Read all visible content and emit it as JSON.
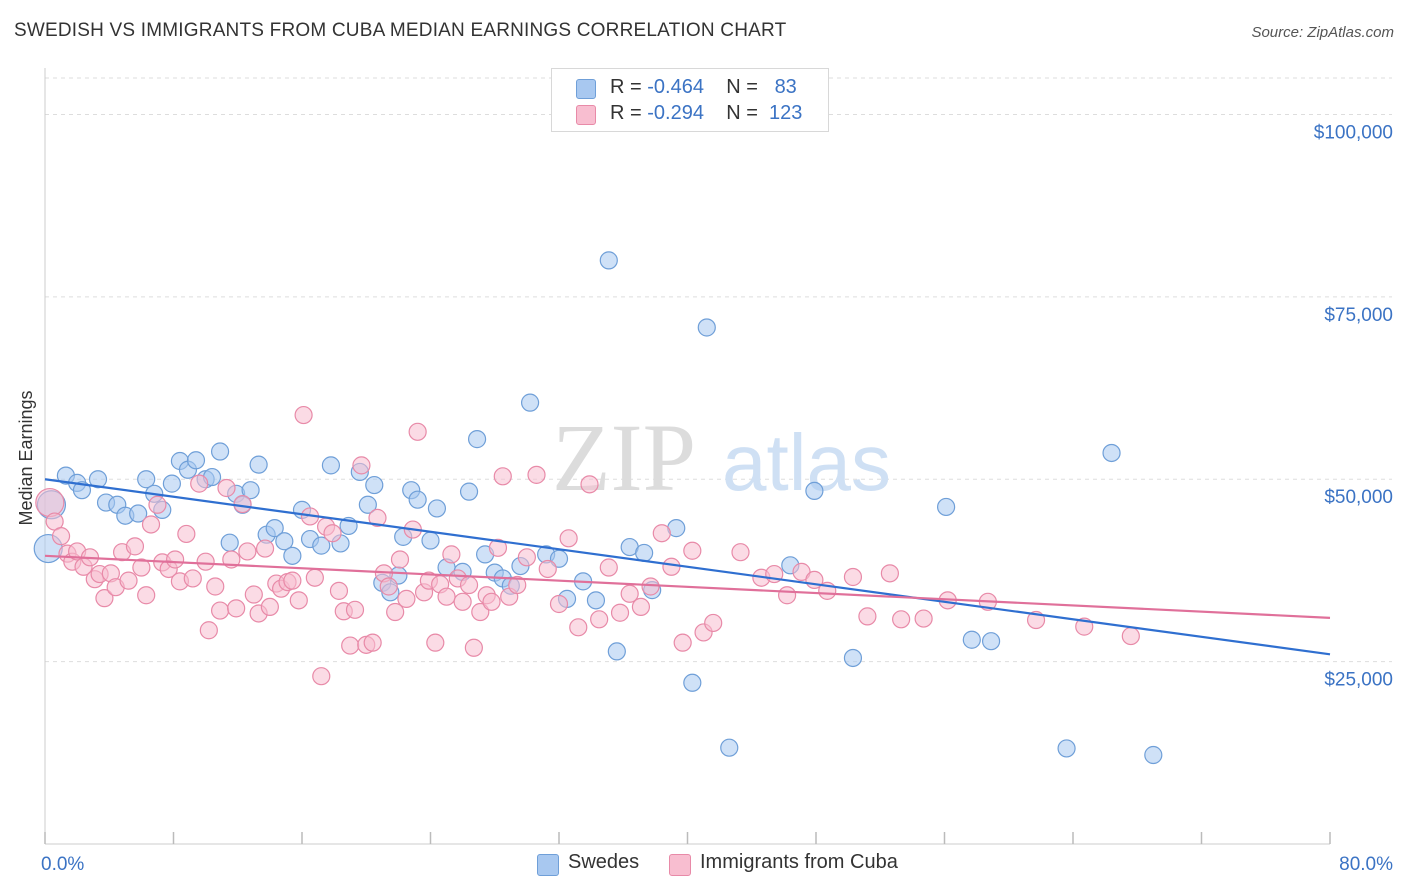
{
  "title": "SWEDISH VS IMMIGRANTS FROM CUBA MEDIAN EARNINGS CORRELATION CHART",
  "source": "Source: ZipAtlas.com",
  "watermark": "ZIPatlas",
  "legend": {
    "rows": [
      {
        "r_label": "R =",
        "r_value": "-0.464",
        "n_label": "N =",
        "n_value": "83",
        "color": "#a8c8f0",
        "border": "#6f9fd8"
      },
      {
        "r_label": "R =",
        "r_value": "-0.294",
        "n_label": "N =",
        "n_value": "123",
        "color": "#f8bed0",
        "border": "#e88aa8"
      }
    ]
  },
  "bottom_legend": [
    {
      "label": "Swedes",
      "color": "#a8c8f0",
      "border": "#6f9fd8"
    },
    {
      "label": "Immigrants from Cuba",
      "color": "#f8bed0",
      "border": "#e88aa8"
    }
  ],
  "chart_data": {
    "type": "scatter",
    "title": "SWEDISH VS IMMIGRANTS FROM CUBA MEDIAN EARNINGS CORRELATION CHART",
    "xlabel": "",
    "ylabel": "Median Earnings",
    "xlim": [
      0,
      80
    ],
    "ylim": [
      0,
      105000
    ],
    "x_tick_labels": [
      "0.0%",
      "80.0%"
    ],
    "y_ticks": [
      25000,
      50000,
      75000,
      100000
    ],
    "y_tick_labels": [
      "$25,000",
      "$50,000",
      "$75,000",
      "$100,000"
    ],
    "grid": "horizontal dashed",
    "legend_position": "top-center",
    "series": [
      {
        "name": "Swedes",
        "color": "#a8c8f0",
        "stroke": "#6f9fd8",
        "line_color": "#2f6fd0",
        "trend": [
          [
            0,
            50000
          ],
          [
            80,
            26000
          ]
        ],
        "points": [
          [
            0.2,
            40500
          ],
          [
            0.4,
            46500
          ],
          [
            1.3,
            50500
          ],
          [
            2.0,
            49500
          ],
          [
            2.3,
            48500
          ],
          [
            3.3,
            50000
          ],
          [
            3.8,
            46800
          ],
          [
            4.5,
            46500
          ],
          [
            5.0,
            45000
          ],
          [
            5.8,
            45300
          ],
          [
            6.3,
            50000
          ],
          [
            6.8,
            48000
          ],
          [
            7.3,
            45800
          ],
          [
            7.9,
            49400
          ],
          [
            8.4,
            52500
          ],
          [
            8.9,
            51300
          ],
          [
            9.4,
            52600
          ],
          [
            10.0,
            50000
          ],
          [
            10.4,
            50300
          ],
          [
            10.9,
            53800
          ],
          [
            11.5,
            41300
          ],
          [
            11.9,
            48000
          ],
          [
            12.3,
            46500
          ],
          [
            12.8,
            48500
          ],
          [
            13.3,
            52000
          ],
          [
            13.8,
            42400
          ],
          [
            14.3,
            43300
          ],
          [
            14.9,
            41500
          ],
          [
            15.4,
            39500
          ],
          [
            16.0,
            45800
          ],
          [
            16.5,
            41800
          ],
          [
            17.2,
            40900
          ],
          [
            17.8,
            51900
          ],
          [
            18.4,
            41200
          ],
          [
            18.9,
            43600
          ],
          [
            19.6,
            51000
          ],
          [
            20.1,
            46500
          ],
          [
            20.5,
            49200
          ],
          [
            21.0,
            35800
          ],
          [
            21.5,
            34500
          ],
          [
            22.0,
            36800
          ],
          [
            22.3,
            42100
          ],
          [
            22.8,
            48500
          ],
          [
            23.2,
            47200
          ],
          [
            24.0,
            41600
          ],
          [
            24.4,
            46000
          ],
          [
            25.0,
            37900
          ],
          [
            26.0,
            37300
          ],
          [
            26.4,
            48300
          ],
          [
            26.9,
            55500
          ],
          [
            27.4,
            39700
          ],
          [
            28.0,
            37200
          ],
          [
            28.5,
            36400
          ],
          [
            29.0,
            35400
          ],
          [
            29.6,
            38100
          ],
          [
            30.2,
            60500
          ],
          [
            31.2,
            39700
          ],
          [
            32.0,
            39100
          ],
          [
            32.5,
            33600
          ],
          [
            33.5,
            36000
          ],
          [
            34.3,
            33400
          ],
          [
            35.1,
            80000
          ],
          [
            35.6,
            26400
          ],
          [
            36.4,
            40700
          ],
          [
            37.3,
            39900
          ],
          [
            37.8,
            34800
          ],
          [
            39.3,
            43300
          ],
          [
            40.3,
            22100
          ],
          [
            41.2,
            70800
          ],
          [
            42.6,
            13200
          ],
          [
            46.4,
            38200
          ],
          [
            47.9,
            48400
          ],
          [
            50.3,
            25500
          ],
          [
            56.1,
            46200
          ],
          [
            57.7,
            28000
          ],
          [
            58.9,
            27800
          ],
          [
            63.6,
            13100
          ],
          [
            66.4,
            53600
          ],
          [
            69.0,
            12200
          ]
        ]
      },
      {
        "name": "Immigrants from Cuba",
        "color": "#f8bed0",
        "stroke": "#e88aa8",
        "line_color": "#e0709a",
        "trend": [
          [
            0,
            39500
          ],
          [
            80,
            31000
          ]
        ],
        "points": [
          [
            0.3,
            46800
          ],
          [
            0.6,
            44200
          ],
          [
            1.0,
            42200
          ],
          [
            1.4,
            39800
          ],
          [
            1.7,
            38700
          ],
          [
            2.0,
            40100
          ],
          [
            2.4,
            38000
          ],
          [
            2.8,
            39300
          ],
          [
            3.1,
            36300
          ],
          [
            3.4,
            37000
          ],
          [
            3.7,
            33700
          ],
          [
            4.1,
            37100
          ],
          [
            4.4,
            35200
          ],
          [
            4.8,
            40000
          ],
          [
            5.2,
            36100
          ],
          [
            5.6,
            40800
          ],
          [
            6.0,
            37900
          ],
          [
            6.3,
            34100
          ],
          [
            6.6,
            43800
          ],
          [
            7.0,
            46500
          ],
          [
            7.3,
            38600
          ],
          [
            7.7,
            37700
          ],
          [
            8.1,
            39000
          ],
          [
            8.4,
            36000
          ],
          [
            8.8,
            42500
          ],
          [
            9.2,
            36400
          ],
          [
            9.6,
            49400
          ],
          [
            10.0,
            38700
          ],
          [
            10.2,
            29300
          ],
          [
            10.6,
            35300
          ],
          [
            10.9,
            32000
          ],
          [
            11.3,
            48800
          ],
          [
            11.6,
            39000
          ],
          [
            11.9,
            32300
          ],
          [
            12.3,
            46600
          ],
          [
            12.6,
            40100
          ],
          [
            13.0,
            34200
          ],
          [
            13.3,
            31600
          ],
          [
            13.7,
            40500
          ],
          [
            14.0,
            32500
          ],
          [
            14.4,
            35700
          ],
          [
            14.7,
            35000
          ],
          [
            15.1,
            35900
          ],
          [
            15.4,
            36100
          ],
          [
            15.8,
            33400
          ],
          [
            16.1,
            58800
          ],
          [
            16.5,
            44900
          ],
          [
            16.8,
            36500
          ],
          [
            17.2,
            23000
          ],
          [
            17.5,
            43500
          ],
          [
            17.9,
            42600
          ],
          [
            18.3,
            34700
          ],
          [
            18.6,
            31900
          ],
          [
            19.0,
            27200
          ],
          [
            19.3,
            32100
          ],
          [
            19.7,
            51900
          ],
          [
            20.0,
            27300
          ],
          [
            20.4,
            27600
          ],
          [
            20.7,
            44700
          ],
          [
            21.1,
            37100
          ],
          [
            21.4,
            35300
          ],
          [
            21.8,
            31800
          ],
          [
            22.1,
            39000
          ],
          [
            22.5,
            33600
          ],
          [
            22.9,
            43100
          ],
          [
            23.2,
            56500
          ],
          [
            23.6,
            34500
          ],
          [
            23.9,
            36100
          ],
          [
            24.3,
            27600
          ],
          [
            24.6,
            35600
          ],
          [
            25.0,
            33900
          ],
          [
            25.3,
            39700
          ],
          [
            25.7,
            36400
          ],
          [
            26.0,
            33200
          ],
          [
            26.4,
            35500
          ],
          [
            26.7,
            26900
          ],
          [
            27.1,
            31800
          ],
          [
            27.5,
            34100
          ],
          [
            27.8,
            33200
          ],
          [
            28.2,
            40600
          ],
          [
            28.5,
            50400
          ],
          [
            28.9,
            33900
          ],
          [
            29.4,
            35500
          ],
          [
            30.0,
            39300
          ],
          [
            30.6,
            50600
          ],
          [
            31.3,
            37700
          ],
          [
            32.0,
            32900
          ],
          [
            32.6,
            41900
          ],
          [
            33.2,
            29700
          ],
          [
            33.9,
            49300
          ],
          [
            34.5,
            30800
          ],
          [
            35.1,
            37900
          ],
          [
            35.8,
            31700
          ],
          [
            36.4,
            34300
          ],
          [
            37.1,
            32500
          ],
          [
            37.7,
            35300
          ],
          [
            38.4,
            42600
          ],
          [
            39.0,
            38000
          ],
          [
            39.7,
            27600
          ],
          [
            40.3,
            40200
          ],
          [
            41.0,
            29000
          ],
          [
            41.6,
            30300
          ],
          [
            43.3,
            40000
          ],
          [
            44.6,
            36500
          ],
          [
            45.4,
            37000
          ],
          [
            46.2,
            34100
          ],
          [
            47.1,
            37300
          ],
          [
            47.9,
            36200
          ],
          [
            48.7,
            34700
          ],
          [
            50.3,
            36600
          ],
          [
            51.2,
            31200
          ],
          [
            52.6,
            37100
          ],
          [
            53.3,
            30800
          ],
          [
            54.7,
            30900
          ],
          [
            56.2,
            33400
          ],
          [
            58.7,
            33200
          ],
          [
            61.7,
            30700
          ],
          [
            64.7,
            29800
          ],
          [
            67.6,
            28500
          ]
        ]
      }
    ]
  }
}
